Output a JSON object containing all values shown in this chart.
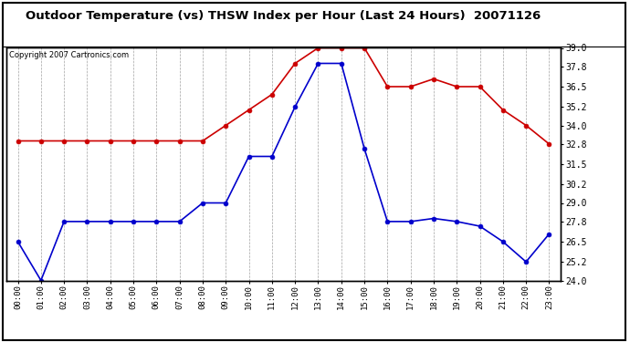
{
  "title": "Outdoor Temperature (vs) THSW Index per Hour (Last 24 Hours)  20071126",
  "copyright": "Copyright 2007 Cartronics.com",
  "x_labels": [
    "00:00",
    "01:00",
    "02:00",
    "03:00",
    "04:00",
    "05:00",
    "06:00",
    "07:00",
    "08:00",
    "09:00",
    "10:00",
    "11:00",
    "12:00",
    "13:00",
    "14:00",
    "15:00",
    "16:00",
    "17:00",
    "18:00",
    "19:00",
    "20:00",
    "21:00",
    "22:00",
    "23:00"
  ],
  "blue_data": [
    26.5,
    24.0,
    27.8,
    27.8,
    27.8,
    27.8,
    27.8,
    27.8,
    29.0,
    29.0,
    32.0,
    32.0,
    35.2,
    38.0,
    38.0,
    32.5,
    27.8,
    27.8,
    28.0,
    27.8,
    27.5,
    26.5,
    25.2,
    27.0
  ],
  "red_data": [
    33.0,
    33.0,
    33.0,
    33.0,
    33.0,
    33.0,
    33.0,
    33.0,
    33.0,
    34.0,
    35.0,
    36.0,
    38.0,
    39.0,
    39.0,
    39.0,
    36.5,
    36.5,
    37.0,
    36.5,
    36.5,
    35.0,
    34.0,
    32.8
  ],
  "ylim": [
    24.0,
    39.0
  ],
  "yticks": [
    24.0,
    25.2,
    26.5,
    27.8,
    29.0,
    30.2,
    31.5,
    32.8,
    34.0,
    35.2,
    36.5,
    37.8,
    39.0
  ],
  "bg_color": "#ffffff",
  "plot_bg_color": "#ffffff",
  "grid_color": "#999999",
  "blue_color": "#0000cc",
  "red_color": "#cc0000",
  "title_color": "#000000",
  "border_color": "#000000"
}
